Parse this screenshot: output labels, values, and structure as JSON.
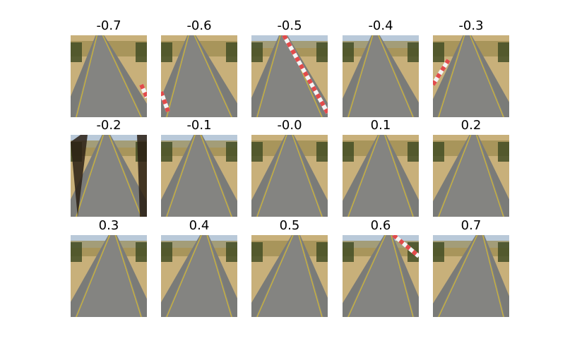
{
  "figure": {
    "panels": [
      {
        "label": "-0.7",
        "steering": -0.7,
        "scene": {
          "curb": "right-low",
          "sky": false
        }
      },
      {
        "label": "-0.6",
        "steering": -0.6,
        "scene": {
          "curb": "left-low",
          "sky": false
        }
      },
      {
        "label": "-0.5",
        "steering": -0.5,
        "scene": {
          "curb": "left-diag",
          "sky": true
        }
      },
      {
        "label": "-0.4",
        "steering": -0.4,
        "scene": {
          "curb": "none",
          "sky": true
        }
      },
      {
        "label": "-0.3",
        "steering": -0.3,
        "scene": {
          "curb": "left-mid",
          "sky": false
        }
      },
      {
        "label": "-0.2",
        "steering": -0.2,
        "scene": {
          "curb": "dark-edges",
          "sky": true
        }
      },
      {
        "label": "-0.1",
        "steering": -0.1,
        "scene": {
          "curb": "none",
          "sky": true
        }
      },
      {
        "label": "-0.0",
        "steering": 0.0,
        "scene": {
          "curb": "none",
          "sky": false
        }
      },
      {
        "label": "0.1",
        "steering": 0.1,
        "scene": {
          "curb": "none",
          "sky": false
        }
      },
      {
        "label": "0.2",
        "steering": 0.2,
        "scene": {
          "curb": "none",
          "sky": false
        }
      },
      {
        "label": "0.3",
        "steering": 0.3,
        "scene": {
          "curb": "none",
          "sky": true
        }
      },
      {
        "label": "0.4",
        "steering": 0.4,
        "scene": {
          "curb": "none",
          "sky": true
        }
      },
      {
        "label": "0.5",
        "steering": 0.5,
        "scene": {
          "curb": "none",
          "sky": false
        }
      },
      {
        "label": "0.6",
        "steering": 0.6,
        "scene": {
          "curb": "right-top",
          "sky": true
        }
      },
      {
        "label": "0.7",
        "steering": 0.7,
        "scene": {
          "curb": "none",
          "sky": true
        }
      }
    ]
  }
}
